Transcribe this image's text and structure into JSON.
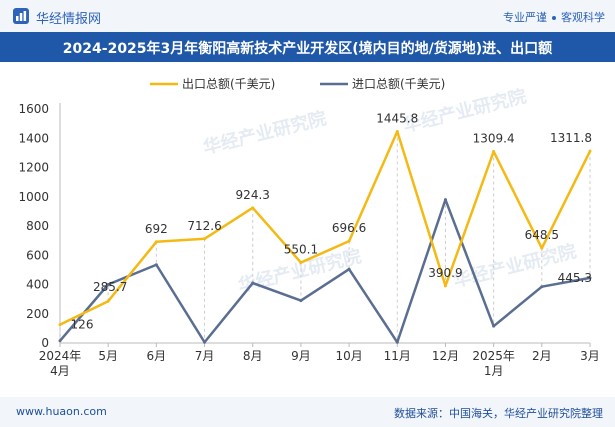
{
  "header": {
    "brand": "华经情报网",
    "tag_1": "专业严谨",
    "tag_2": "客观科学"
  },
  "title": "2024-2025年3月年衡阳高新技术产业开发区(境内目的地/货源地)进、出口额",
  "footer": {
    "url": "www.huaon.com",
    "source": "数据来源：中国海关，华经产业研究院整理"
  },
  "colors": {
    "export": "#f5b914",
    "import": "#5a6e91",
    "accent": "#1f58a8"
  },
  "chart_data": {
    "type": "line",
    "categories": [
      "2024年4月",
      "5月",
      "6月",
      "7月",
      "8月",
      "9月",
      "10月",
      "11月",
      "12月",
      "2025年1月",
      "2月",
      "3月"
    ],
    "ylim": [
      0,
      1600
    ],
    "yticks": [
      0,
      200,
      400,
      600,
      800,
      1000,
      1200,
      1400,
      1600
    ],
    "grid": false,
    "legend": "top-center",
    "series": [
      {
        "name": "出口总额(千美元)",
        "values": [
          126,
          285.7,
          692,
          712.6,
          924.3,
          550.1,
          696.6,
          1445.8,
          390.9,
          1309.4,
          648.5,
          1311.8
        ],
        "labels": [
          "126",
          "285.7",
          "692",
          "712.6",
          "924.3",
          "550.1",
          "696.6",
          "1445.8",
          "390.9",
          "1309.4",
          "648.5",
          "1311.8"
        ]
      },
      {
        "name": "进口总额(千美元)",
        "values": [
          15,
          400,
          535,
          5,
          410,
          290,
          505,
          5,
          980,
          115,
          385,
          445.3
        ],
        "labels": [
          "",
          "",
          "",
          "",
          "",
          "",
          "",
          "",
          "",
          "",
          "",
          "445.3"
        ]
      }
    ]
  }
}
